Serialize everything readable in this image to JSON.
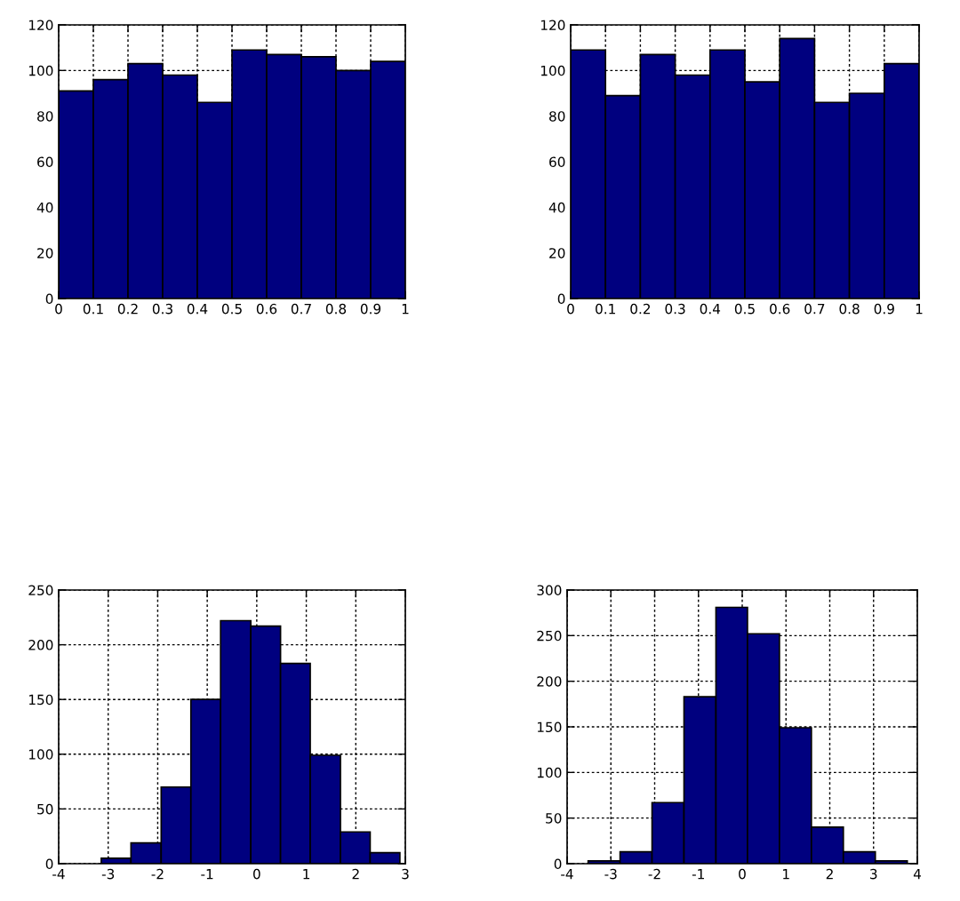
{
  "chart_data": [
    {
      "type": "histogram",
      "bins": [
        0,
        0.1,
        0.2,
        0.3,
        0.4,
        0.5,
        0.6,
        0.7,
        0.8,
        0.9,
        1
      ],
      "values": [
        91,
        96,
        103,
        98,
        86,
        109,
        107,
        106,
        100,
        104
      ],
      "color": "#00007f",
      "xlim": [
        0,
        1
      ],
      "xticks": [
        0,
        0.1,
        0.2,
        0.3,
        0.4,
        0.5,
        0.6,
        0.7,
        0.8,
        0.9,
        1
      ],
      "ylim": [
        0,
        120
      ],
      "yticks": [
        0,
        20,
        40,
        60,
        80,
        100,
        120
      ],
      "grid": true
    },
    {
      "type": "histogram",
      "bins": [
        0,
        0.1,
        0.2,
        0.3,
        0.4,
        0.5,
        0.6,
        0.7,
        0.8,
        0.9,
        1
      ],
      "values": [
        109,
        89,
        107,
        98,
        109,
        95,
        114,
        86,
        90,
        103
      ],
      "color": "#00007f",
      "xlim": [
        0,
        1
      ],
      "xticks": [
        0,
        0.1,
        0.2,
        0.3,
        0.4,
        0.5,
        0.6,
        0.7,
        0.8,
        0.9,
        1
      ],
      "ylim": [
        0,
        120
      ],
      "yticks": [
        0,
        20,
        40,
        60,
        80,
        100,
        120
      ],
      "grid": true
    },
    {
      "type": "histogram",
      "bins": [
        -3.14,
        -2.54,
        -1.93,
        -1.33,
        -0.73,
        -0.12,
        0.48,
        1.08,
        1.69,
        2.29,
        2.89
      ],
      "values": [
        5,
        19,
        70,
        150,
        222,
        217,
        183,
        99,
        29,
        10
      ],
      "color": "#00007f",
      "xlim": [
        -4,
        3
      ],
      "xticks": [
        -4,
        -3,
        -2,
        -1,
        0,
        1,
        2,
        3
      ],
      "ylim": [
        0,
        250
      ],
      "yticks": [
        0,
        50,
        100,
        150,
        200,
        250
      ],
      "grid": true
    },
    {
      "type": "histogram",
      "bins": [
        -3.52,
        -2.79,
        -2.06,
        -1.33,
        -0.6,
        0.12,
        0.85,
        1.58,
        2.31,
        3.04,
        3.77
      ],
      "values": [
        3,
        13,
        67,
        183,
        281,
        252,
        149,
        40,
        13,
        3
      ],
      "color": "#00007f",
      "xlim": [
        -4,
        4
      ],
      "xticks": [
        -4,
        -3,
        -2,
        -1,
        0,
        1,
        2,
        3,
        4
      ],
      "ylim": [
        0,
        300
      ],
      "yticks": [
        0,
        50,
        100,
        150,
        200,
        250,
        300
      ],
      "grid": true
    }
  ]
}
